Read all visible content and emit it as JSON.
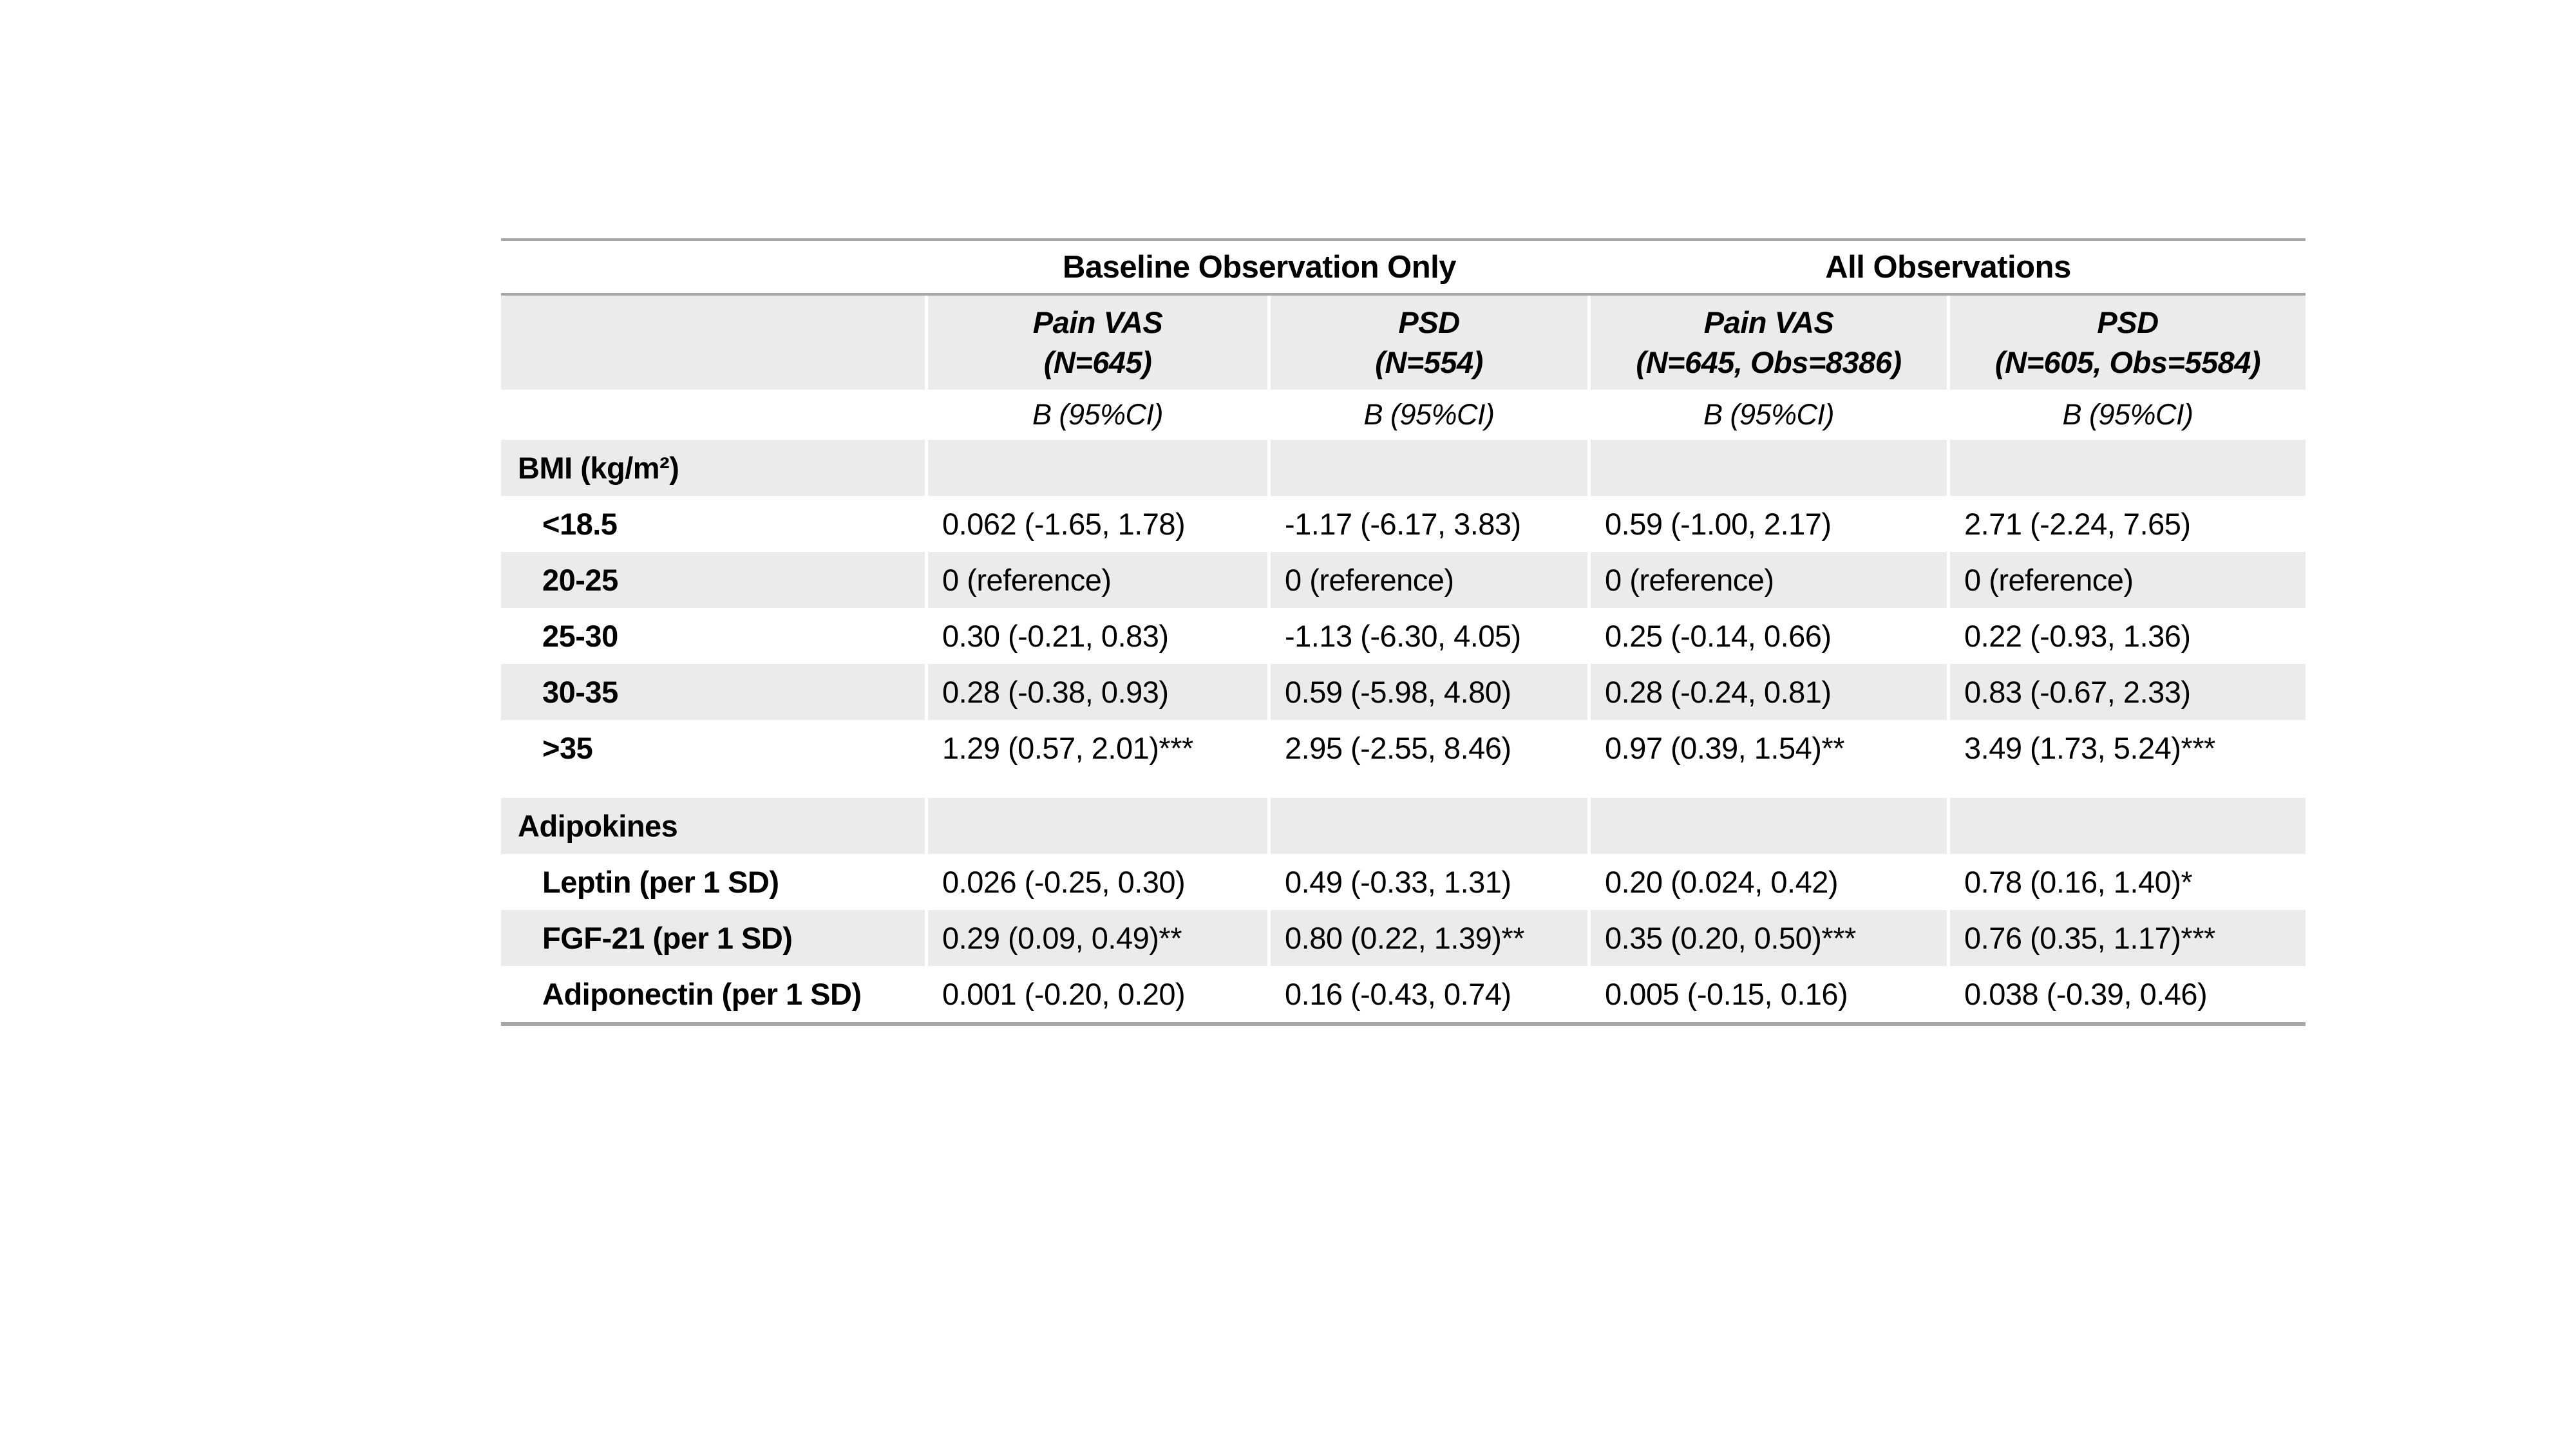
{
  "table": {
    "group_headers": [
      {
        "label": "Baseline Observation Only"
      },
      {
        "label": "All Observations"
      }
    ],
    "columns": [
      {
        "name": "Pain VAS",
        "n": "(N=645)"
      },
      {
        "name": "PSD",
        "n": "(N=554)"
      },
      {
        "name": "Pain VAS",
        "n": "(N=645, Obs=8386)"
      },
      {
        "name": "PSD",
        "n": "(N=605, Obs=5584)"
      }
    ],
    "stat_label": "B (95%CI)",
    "sections": [
      {
        "title": "BMI (kg/m²)",
        "rows": [
          {
            "label": "<18.5",
            "values": [
              "0.062 (-1.65, 1.78)",
              "-1.17 (-6.17, 3.83)",
              "0.59 (-1.00, 2.17)",
              "2.71 (-2.24, 7.65)"
            ]
          },
          {
            "label": "20-25",
            "values": [
              "0 (reference)",
              "0 (reference)",
              "0 (reference)",
              "0 (reference)"
            ]
          },
          {
            "label": "25-30",
            "values": [
              "0.30 (-0.21, 0.83)",
              "-1.13 (-6.30, 4.05)",
              "0.25 (-0.14, 0.66)",
              "0.22 (-0.93, 1.36)"
            ]
          },
          {
            "label": "30-35",
            "values": [
              "0.28 (-0.38, 0.93)",
              "0.59 (-5.98, 4.80)",
              "0.28 (-0.24, 0.81)",
              "0.83 (-0.67, 2.33)"
            ]
          },
          {
            "label": ">35",
            "values": [
              "1.29 (0.57, 2.01)***",
              "2.95 (-2.55, 8.46)",
              "0.97 (0.39, 1.54)**",
              "3.49 (1.73, 5.24)***"
            ]
          }
        ]
      },
      {
        "title": "Adipokines",
        "rows": [
          {
            "label": "Leptin (per 1 SD)",
            "values": [
              "0.026 (-0.25, 0.30)",
              "0.49 (-0.33, 1.31)",
              "0.20 (0.024, 0.42)",
              "0.78 (0.16, 1.40)*"
            ]
          },
          {
            "label": "FGF-21 (per 1 SD)",
            "values": [
              "0.29 (0.09, 0.49)**",
              "0.80 (0.22, 1.39)**",
              "0.35 (0.20, 0.50)***",
              "0.76 (0.35, 1.17)***"
            ]
          },
          {
            "label": "Adiponectin (per 1 SD)",
            "values": [
              "0.001 (-0.20, 0.20)",
              "0.16 (-0.43, 0.74)",
              "0.005 (-0.15, 0.16)",
              "0.038 (-0.39, 0.46)"
            ]
          }
        ]
      }
    ],
    "colors": {
      "band": "#ebebeb",
      "rule": "#a6a6a6",
      "text": "#000000",
      "background": "#ffffff"
    }
  }
}
